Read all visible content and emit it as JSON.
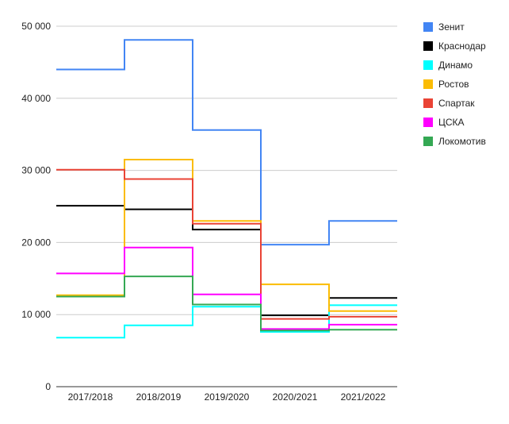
{
  "chart_data": {
    "type": "line",
    "step": true,
    "categories": [
      "2017/2018",
      "2018/2019",
      "2019/2020",
      "2020/2021",
      "2021/2022"
    ],
    "ylim": [
      0,
      50000
    ],
    "yticks": [
      0,
      10000,
      20000,
      30000,
      40000,
      50000
    ],
    "ytick_labels": [
      "0",
      "10 000",
      "20 000",
      "30 000",
      "40 000",
      "50 000"
    ],
    "grid": true,
    "legend_position": "right",
    "series": [
      {
        "name": "Зенит",
        "color": "#4285f4",
        "values": [
          44000,
          48100,
          35600,
          19700,
          23000
        ]
      },
      {
        "name": "Краснодар",
        "color": "#000000",
        "values": [
          25100,
          24600,
          21800,
          9900,
          12300
        ]
      },
      {
        "name": "Динамо",
        "color": "#00ffff",
        "values": [
          6800,
          8500,
          11100,
          7600,
          11300
        ]
      },
      {
        "name": "Ростов",
        "color": "#fbbc04",
        "values": [
          12700,
          31500,
          23000,
          14200,
          10500
        ]
      },
      {
        "name": "Спартак",
        "color": "#ea4335",
        "values": [
          30100,
          28800,
          22600,
          9400,
          9700
        ]
      },
      {
        "name": "ЦСКА",
        "color": "#ff00ff",
        "values": [
          15700,
          19300,
          12800,
          8000,
          8600
        ]
      },
      {
        "name": "Локомотив",
        "color": "#34a853",
        "values": [
          12500,
          15300,
          11400,
          7800,
          7900
        ]
      }
    ]
  }
}
